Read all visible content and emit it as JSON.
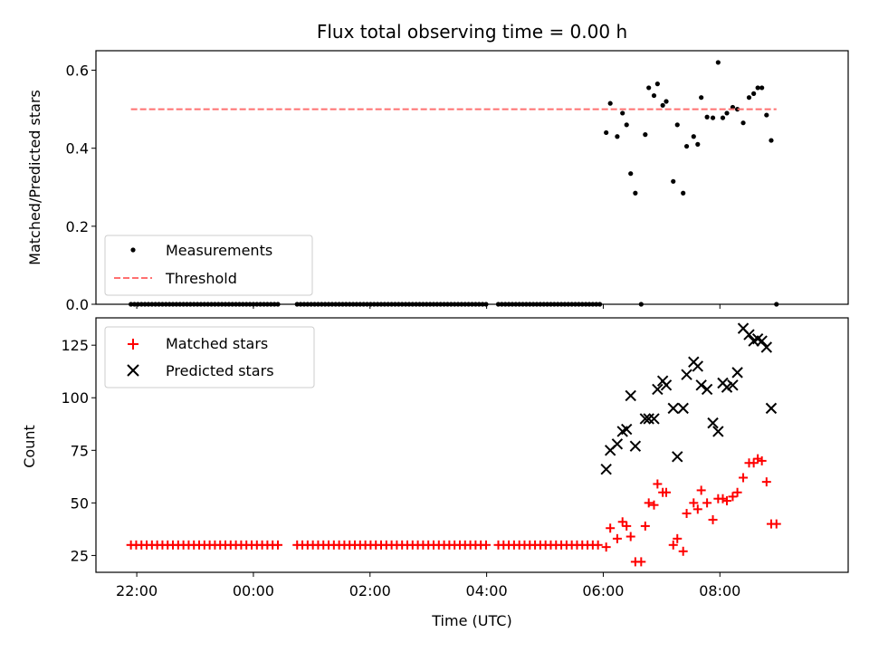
{
  "chart_data": [
    {
      "type": "scatter",
      "title": "Flux total observing time = 0.00 h",
      "xlabel": "",
      "ylabel": "Matched/Predicted stars",
      "ylim": [
        0,
        0.65
      ],
      "xlim": [
        -2.7,
        10.2
      ],
      "yticks": [
        {
          "v": 0.0,
          "label": "0.0"
        },
        {
          "v": 0.2,
          "label": "0.2"
        },
        {
          "v": 0.4,
          "label": "0.4"
        },
        {
          "v": 0.6,
          "label": "0.6"
        }
      ],
      "legend": {
        "placement": "lower-left",
        "entries": [
          "Measurements",
          "Threshold"
        ]
      },
      "series": [
        {
          "name": "Measurements",
          "marker": "dot",
          "color": "#000000",
          "zero_runs": [
            [
              -2.1,
              0.45,
              0.06
            ],
            [
              0.75,
              4.0,
              0.06
            ],
            [
              4.2,
              5.95,
              0.06
            ]
          ],
          "points": [
            [
              6.05,
              0.44
            ],
            [
              6.12,
              0.515
            ],
            [
              6.24,
              0.43
            ],
            [
              6.33,
              0.49
            ],
            [
              6.4,
              0.46
            ],
            [
              6.47,
              0.335
            ],
            [
              6.55,
              0.285
            ],
            [
              6.65,
              0.0
            ],
            [
              6.72,
              0.435
            ],
            [
              6.78,
              0.555
            ],
            [
              6.87,
              0.535
            ],
            [
              6.93,
              0.565
            ],
            [
              7.02,
              0.51
            ],
            [
              7.08,
              0.52
            ],
            [
              7.2,
              0.315
            ],
            [
              7.27,
              0.46
            ],
            [
              7.37,
              0.285
            ],
            [
              7.43,
              0.405
            ],
            [
              7.55,
              0.43
            ],
            [
              7.62,
              0.41
            ],
            [
              7.68,
              0.53
            ],
            [
              7.78,
              0.48
            ],
            [
              7.88,
              0.478
            ],
            [
              7.97,
              0.62
            ],
            [
              8.05,
              0.478
            ],
            [
              8.12,
              0.49
            ],
            [
              8.22,
              0.505
            ],
            [
              8.3,
              0.5
            ],
            [
              8.4,
              0.465
            ],
            [
              8.5,
              0.53
            ],
            [
              8.58,
              0.54
            ],
            [
              8.65,
              0.555
            ],
            [
              8.72,
              0.555
            ],
            [
              8.8,
              0.485
            ],
            [
              8.88,
              0.42
            ],
            [
              8.97,
              0.0
            ]
          ]
        },
        {
          "name": "Threshold",
          "marker": "dashed-line",
          "color": "#ff7070",
          "y": 0.5,
          "x": [
            -2.1,
            8.97
          ]
        }
      ]
    },
    {
      "type": "scatter",
      "title": "",
      "xlabel": "Time (UTC)",
      "ylabel": "Count",
      "ylim": [
        17,
        138
      ],
      "xlim": [
        -2.7,
        10.2
      ],
      "xticks": [
        {
          "v": -2,
          "label": "22:00"
        },
        {
          "v": 0,
          "label": "00:00"
        },
        {
          "v": 2,
          "label": "02:00"
        },
        {
          "v": 4,
          "label": "04:00"
        },
        {
          "v": 6,
          "label": "06:00"
        },
        {
          "v": 8,
          "label": "08:00"
        }
      ],
      "yticks": [
        {
          "v": 25,
          "label": "25"
        },
        {
          "v": 50,
          "label": "50"
        },
        {
          "v": 75,
          "label": "75"
        },
        {
          "v": 100,
          "label": "100"
        },
        {
          "v": 125,
          "label": "125"
        }
      ],
      "legend": {
        "placement": "upper-left",
        "entries": [
          "Matched stars",
          "Predicted stars"
        ]
      },
      "series": [
        {
          "name": "Matched stars",
          "marker": "plus",
          "color": "#ff0000",
          "baseline_runs": [
            [
              -2.1,
              0.45,
              0.09,
              30
            ],
            [
              0.75,
              4.0,
              0.09,
              30
            ],
            [
              4.2,
              5.95,
              0.09,
              30
            ]
          ],
          "points": [
            [
              6.05,
              29
            ],
            [
              6.12,
              38
            ],
            [
              6.24,
              33
            ],
            [
              6.33,
              41
            ],
            [
              6.4,
              39
            ],
            [
              6.47,
              34
            ],
            [
              6.55,
              22
            ],
            [
              6.65,
              22
            ],
            [
              6.72,
              39
            ],
            [
              6.78,
              50
            ],
            [
              6.87,
              49
            ],
            [
              6.93,
              59
            ],
            [
              7.02,
              55
            ],
            [
              7.08,
              55
            ],
            [
              7.2,
              30
            ],
            [
              7.27,
              33
            ],
            [
              7.37,
              27
            ],
            [
              7.43,
              45
            ],
            [
              7.55,
              50
            ],
            [
              7.62,
              47
            ],
            [
              7.68,
              56
            ],
            [
              7.78,
              50
            ],
            [
              7.88,
              42
            ],
            [
              7.97,
              52
            ],
            [
              8.05,
              52
            ],
            [
              8.12,
              51
            ],
            [
              8.22,
              53
            ],
            [
              8.3,
              55
            ],
            [
              8.4,
              62
            ],
            [
              8.5,
              69
            ],
            [
              8.58,
              69
            ],
            [
              8.65,
              71
            ],
            [
              8.72,
              70
            ],
            [
              8.8,
              60
            ],
            [
              8.88,
              40
            ],
            [
              8.97,
              40
            ]
          ]
        },
        {
          "name": "Predicted stars",
          "marker": "x",
          "color": "#000000",
          "points": [
            [
              6.05,
              66
            ],
            [
              6.12,
              75
            ],
            [
              6.24,
              78
            ],
            [
              6.33,
              84
            ],
            [
              6.4,
              85
            ],
            [
              6.47,
              101
            ],
            [
              6.55,
              77
            ],
            [
              6.72,
              90
            ],
            [
              6.78,
              90
            ],
            [
              6.87,
              90
            ],
            [
              6.93,
              104
            ],
            [
              7.02,
              108
            ],
            [
              7.08,
              106
            ],
            [
              7.2,
              95
            ],
            [
              7.27,
              72
            ],
            [
              7.37,
              95
            ],
            [
              7.43,
              111
            ],
            [
              7.55,
              117
            ],
            [
              7.62,
              115
            ],
            [
              7.68,
              106
            ],
            [
              7.78,
              104
            ],
            [
              7.88,
              88
            ],
            [
              7.97,
              84
            ],
            [
              8.05,
              107
            ],
            [
              8.12,
              105
            ],
            [
              8.22,
              106
            ],
            [
              8.3,
              112
            ],
            [
              8.4,
              133
            ],
            [
              8.5,
              130
            ],
            [
              8.58,
              127
            ],
            [
              8.65,
              128
            ],
            [
              8.72,
              127
            ],
            [
              8.8,
              124
            ],
            [
              8.88,
              95
            ]
          ]
        }
      ]
    }
  ]
}
